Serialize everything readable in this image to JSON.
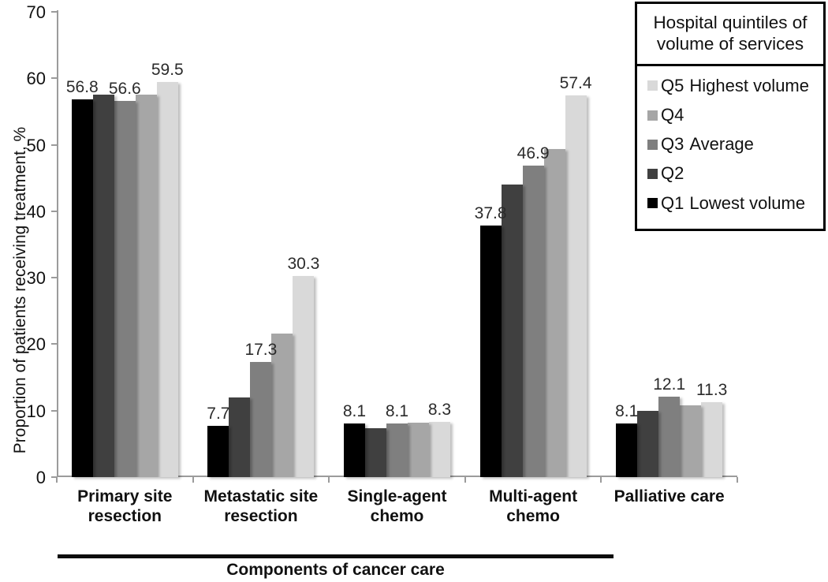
{
  "chart_data": {
    "type": "bar",
    "title": "",
    "ylabel": "Proportion of patients receiving treatment, %",
    "xlabel": "",
    "bracket_label": "Components of cancer care",
    "ylim": [
      0,
      70
    ],
    "yticks": [
      0,
      10,
      20,
      30,
      40,
      50,
      60,
      70
    ],
    "grid": false,
    "legend_position": "top-right",
    "categories": [
      "Primary site resection",
      "Metastatic site resection",
      "Single-agent chemo",
      "Multi-agent chemo",
      "Palliative care"
    ],
    "series": [
      {
        "name": "Q1",
        "description": "Lowest volume",
        "color": "#000000",
        "values": [
          56.8,
          7.7,
          8.1,
          37.8,
          8.1
        ],
        "labels": [
          "56.8",
          "7.7",
          "8.1",
          "37.8",
          "8.1"
        ]
      },
      {
        "name": "Q2",
        "description": "",
        "color": "#404040",
        "values": [
          57.6,
          12.0,
          7.4,
          44.0,
          10.0
        ],
        "labels": null
      },
      {
        "name": "Q3",
        "description": "Average",
        "color": "#7f7f7f",
        "values": [
          56.6,
          17.3,
          8.1,
          46.9,
          12.1
        ],
        "labels": [
          "56.6",
          "17.3",
          "8.1",
          "46.9",
          "12.1"
        ]
      },
      {
        "name": "Q4",
        "description": "",
        "color": "#a6a6a6",
        "values": [
          57.6,
          21.6,
          8.2,
          49.4,
          10.8
        ],
        "labels": null
      },
      {
        "name": "Q5",
        "description": "Highest volume",
        "color": "#d9d9d9",
        "values": [
          59.5,
          30.3,
          8.3,
          57.4,
          11.3
        ],
        "labels": [
          "59.5",
          "30.3",
          "8.3",
          "57.4",
          "11.3"
        ]
      }
    ]
  },
  "legend": {
    "title": "Hospital quintiles of volume of services",
    "entries": [
      {
        "q": "Q5",
        "desc": "Highest volume",
        "color": "#d9d9d9"
      },
      {
        "q": "Q4",
        "desc": "",
        "color": "#a6a6a6"
      },
      {
        "q": "Q3",
        "desc": "Average",
        "color": "#7f7f7f"
      },
      {
        "q": "Q2",
        "desc": "",
        "color": "#404040"
      },
      {
        "q": "Q1",
        "desc": "Lowest volume",
        "color": "#000000"
      }
    ]
  },
  "colors": {
    "axis": "#9b9b9b",
    "text": "#111111",
    "bracket": "#0d0d0d"
  }
}
